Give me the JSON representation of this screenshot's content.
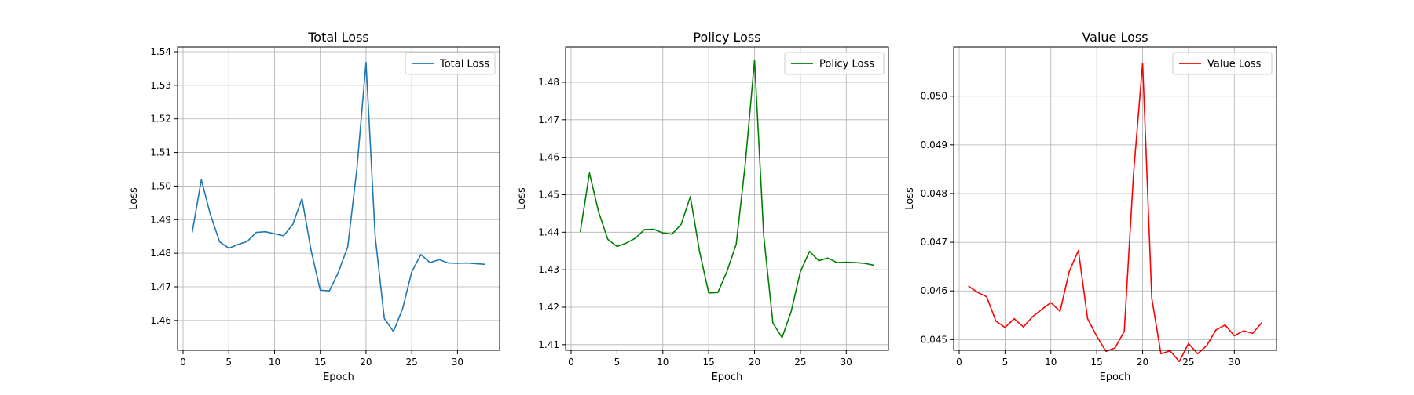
{
  "chart_data": [
    {
      "type": "line",
      "title": "Total Loss",
      "xlabel": "Epoch",
      "ylabel": "Loss",
      "xlim": [
        -0.6,
        34.6
      ],
      "ylim": [
        1.4511,
        1.5414
      ],
      "xticks": [
        0,
        5,
        10,
        15,
        20,
        25,
        30
      ],
      "yticks": [
        1.46,
        1.47,
        1.48,
        1.49,
        1.5,
        1.51,
        1.52,
        1.53,
        1.54
      ],
      "ytick_labels": [
        "1.46",
        "1.47",
        "1.48",
        "1.49",
        "1.50",
        "1.51",
        "1.52",
        "1.53",
        "1.54"
      ],
      "grid": true,
      "legend": "upper right",
      "series": [
        {
          "name": "Total Loss",
          "color": "#1f77b4",
          "x": [
            1,
            2,
            3,
            4,
            5,
            6,
            7,
            8,
            9,
            10,
            11,
            12,
            13,
            14,
            15,
            16,
            17,
            18,
            19,
            20,
            21,
            22,
            23,
            24,
            25,
            26,
            27,
            28,
            29,
            30,
            31,
            32,
            33
          ],
          "values": [
            1.4862,
            1.5019,
            1.4914,
            1.4834,
            1.4815,
            1.4826,
            1.4835,
            1.4862,
            1.4864,
            1.4858,
            1.4852,
            1.4886,
            1.4963,
            1.4808,
            1.469,
            1.4688,
            1.4745,
            1.4819,
            1.5051,
            1.5368,
            1.485,
            1.4606,
            1.4567,
            1.4635,
            1.4745,
            1.4796,
            1.4772,
            1.4781,
            1.4771,
            1.477,
            1.4771,
            1.4769,
            1.4767
          ]
        }
      ]
    },
    {
      "type": "line",
      "title": "Policy Loss",
      "xlabel": "Epoch",
      "ylabel": "Loss",
      "xlim": [
        -0.6,
        34.6
      ],
      "ylim": [
        1.4085,
        1.4894
      ],
      "xticks": [
        0,
        5,
        10,
        15,
        20,
        25,
        30
      ],
      "yticks": [
        1.41,
        1.42,
        1.43,
        1.44,
        1.45,
        1.46,
        1.47,
        1.48
      ],
      "ytick_labels": [
        "1.41",
        "1.42",
        "1.43",
        "1.44",
        "1.45",
        "1.46",
        "1.47",
        "1.48"
      ],
      "grid": true,
      "legend": "upper right",
      "series": [
        {
          "name": "Policy Loss",
          "color": "#008000",
          "x": [
            1,
            2,
            3,
            4,
            5,
            6,
            7,
            8,
            9,
            10,
            11,
            12,
            13,
            14,
            15,
            16,
            17,
            18,
            19,
            20,
            21,
            22,
            23,
            24,
            25,
            26,
            27,
            28,
            29,
            30,
            31,
            32,
            33
          ],
          "values": [
            1.4401,
            1.4558,
            1.4454,
            1.4381,
            1.4362,
            1.4371,
            1.4384,
            1.4407,
            1.4408,
            1.4398,
            1.4395,
            1.4421,
            1.4495,
            1.4349,
            1.4238,
            1.4239,
            1.4296,
            1.4368,
            1.4585,
            1.4859,
            1.4391,
            1.4158,
            1.4119,
            1.4189,
            1.4295,
            1.4349,
            1.4324,
            1.4331,
            1.4319,
            1.432,
            1.4319,
            1.4317,
            1.4312
          ]
        }
      ]
    },
    {
      "type": "line",
      "title": "Value Loss",
      "xlabel": "Epoch",
      "ylabel": "Loss",
      "xlim": [
        -0.6,
        34.6
      ],
      "ylim": [
        0.04478,
        0.05101
      ],
      "xticks": [
        0,
        5,
        10,
        15,
        20,
        25,
        30
      ],
      "yticks": [
        0.045,
        0.046,
        0.047,
        0.048,
        0.049,
        0.05
      ],
      "ytick_labels": [
        "0.045",
        "0.046",
        "0.047",
        "0.048",
        "0.049",
        "0.050"
      ],
      "grid": true,
      "legend": "upper right",
      "series": [
        {
          "name": "Value Loss",
          "color": "#ff0000",
          "x": [
            1,
            2,
            3,
            4,
            5,
            6,
            7,
            8,
            9,
            10,
            11,
            12,
            13,
            14,
            15,
            16,
            17,
            18,
            19,
            20,
            21,
            22,
            23,
            24,
            25,
            26,
            27,
            28,
            29,
            30,
            31,
            32,
            33
          ],
          "values": [
            0.0461,
            0.04597,
            0.04588,
            0.04538,
            0.04525,
            0.04543,
            0.04526,
            0.04547,
            0.04562,
            0.04576,
            0.04558,
            0.0464,
            0.04683,
            0.04543,
            0.04507,
            0.04476,
            0.04483,
            0.04517,
            0.04838,
            0.05068,
            0.04585,
            0.04471,
            0.04477,
            0.04455,
            0.04492,
            0.04471,
            0.04488,
            0.0452,
            0.0453,
            0.04508,
            0.04518,
            0.04513,
            0.04535
          ]
        }
      ]
    }
  ]
}
